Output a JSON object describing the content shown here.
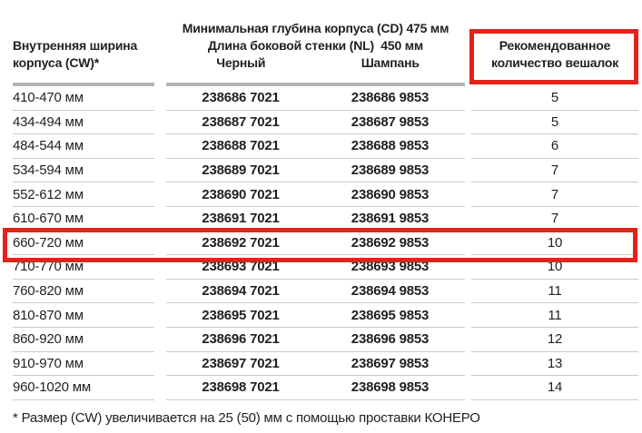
{
  "table": {
    "col1_header_line1": "Внутренняя ширина",
    "col1_header_line2": "корпуса (CW)*",
    "group_header_line1": "Минимальная глубина корпуса (CD) 475 мм",
    "group_header_line2": "Длина боковой стенки (NL)  450 мм",
    "col2_header": "Черный",
    "col3_header": "Шампань",
    "col4_header_line1": "Рекомендованное",
    "col4_header_line2": "количество вешалок",
    "rows": [
      {
        "cw": "410-470 мм",
        "black": "238686 7021",
        "champagne": "238686 9853",
        "hangers": "5",
        "highlighted": false
      },
      {
        "cw": "434-494 мм",
        "black": "238687 7021",
        "champagne": "238687 9853",
        "hangers": "5",
        "highlighted": false
      },
      {
        "cw": "484-544 мм",
        "black": "238688 7021",
        "champagne": "238688 9853",
        "hangers": "6",
        "highlighted": false
      },
      {
        "cw": "534-594 мм",
        "black": "238689 7021",
        "champagne": "238689 9853",
        "hangers": "7",
        "highlighted": false
      },
      {
        "cw": "552-612 мм",
        "black": "238690 7021",
        "champagne": "238690 9853",
        "hangers": "7",
        "highlighted": false
      },
      {
        "cw": "610-670 мм",
        "black": "238691 7021",
        "champagne": "238691 9853",
        "hangers": "7",
        "highlighted": false
      },
      {
        "cw": "660-720 мм",
        "black": "238692 7021",
        "champagne": "238692 9853",
        "hangers": "10",
        "highlighted": true
      },
      {
        "cw": "710-770 мм",
        "black": "238693 7021",
        "champagne": "238693 9853",
        "hangers": "10",
        "highlighted": false
      },
      {
        "cw": "760-820 мм",
        "black": "238694 7021",
        "champagne": "238694 9853",
        "hangers": "11",
        "highlighted": false
      },
      {
        "cw": "810-870 мм",
        "black": "238695 7021",
        "champagne": "238695 9853",
        "hangers": "11",
        "highlighted": false
      },
      {
        "cw": "860-920 мм",
        "black": "238696 7021",
        "champagne": "238696 9853",
        "hangers": "12",
        "highlighted": false
      },
      {
        "cw": "910-970 мм",
        "black": "238697 7021",
        "champagne": "238697 9853",
        "hangers": "13",
        "highlighted": false
      },
      {
        "cw": "960-1020 мм",
        "black": "238698 7021",
        "champagne": "238698 9853",
        "hangers": "14",
        "highlighted": false
      }
    ],
    "footnote": "* Размер (CW) увеличивается на 25 (50) мм с помощью проставки КОНЕРО"
  },
  "colors": {
    "highlight_red": "#e2231a",
    "text": "#231f20",
    "thick_line": "#b2b4b6",
    "thin_line": "#c9cbcd"
  }
}
